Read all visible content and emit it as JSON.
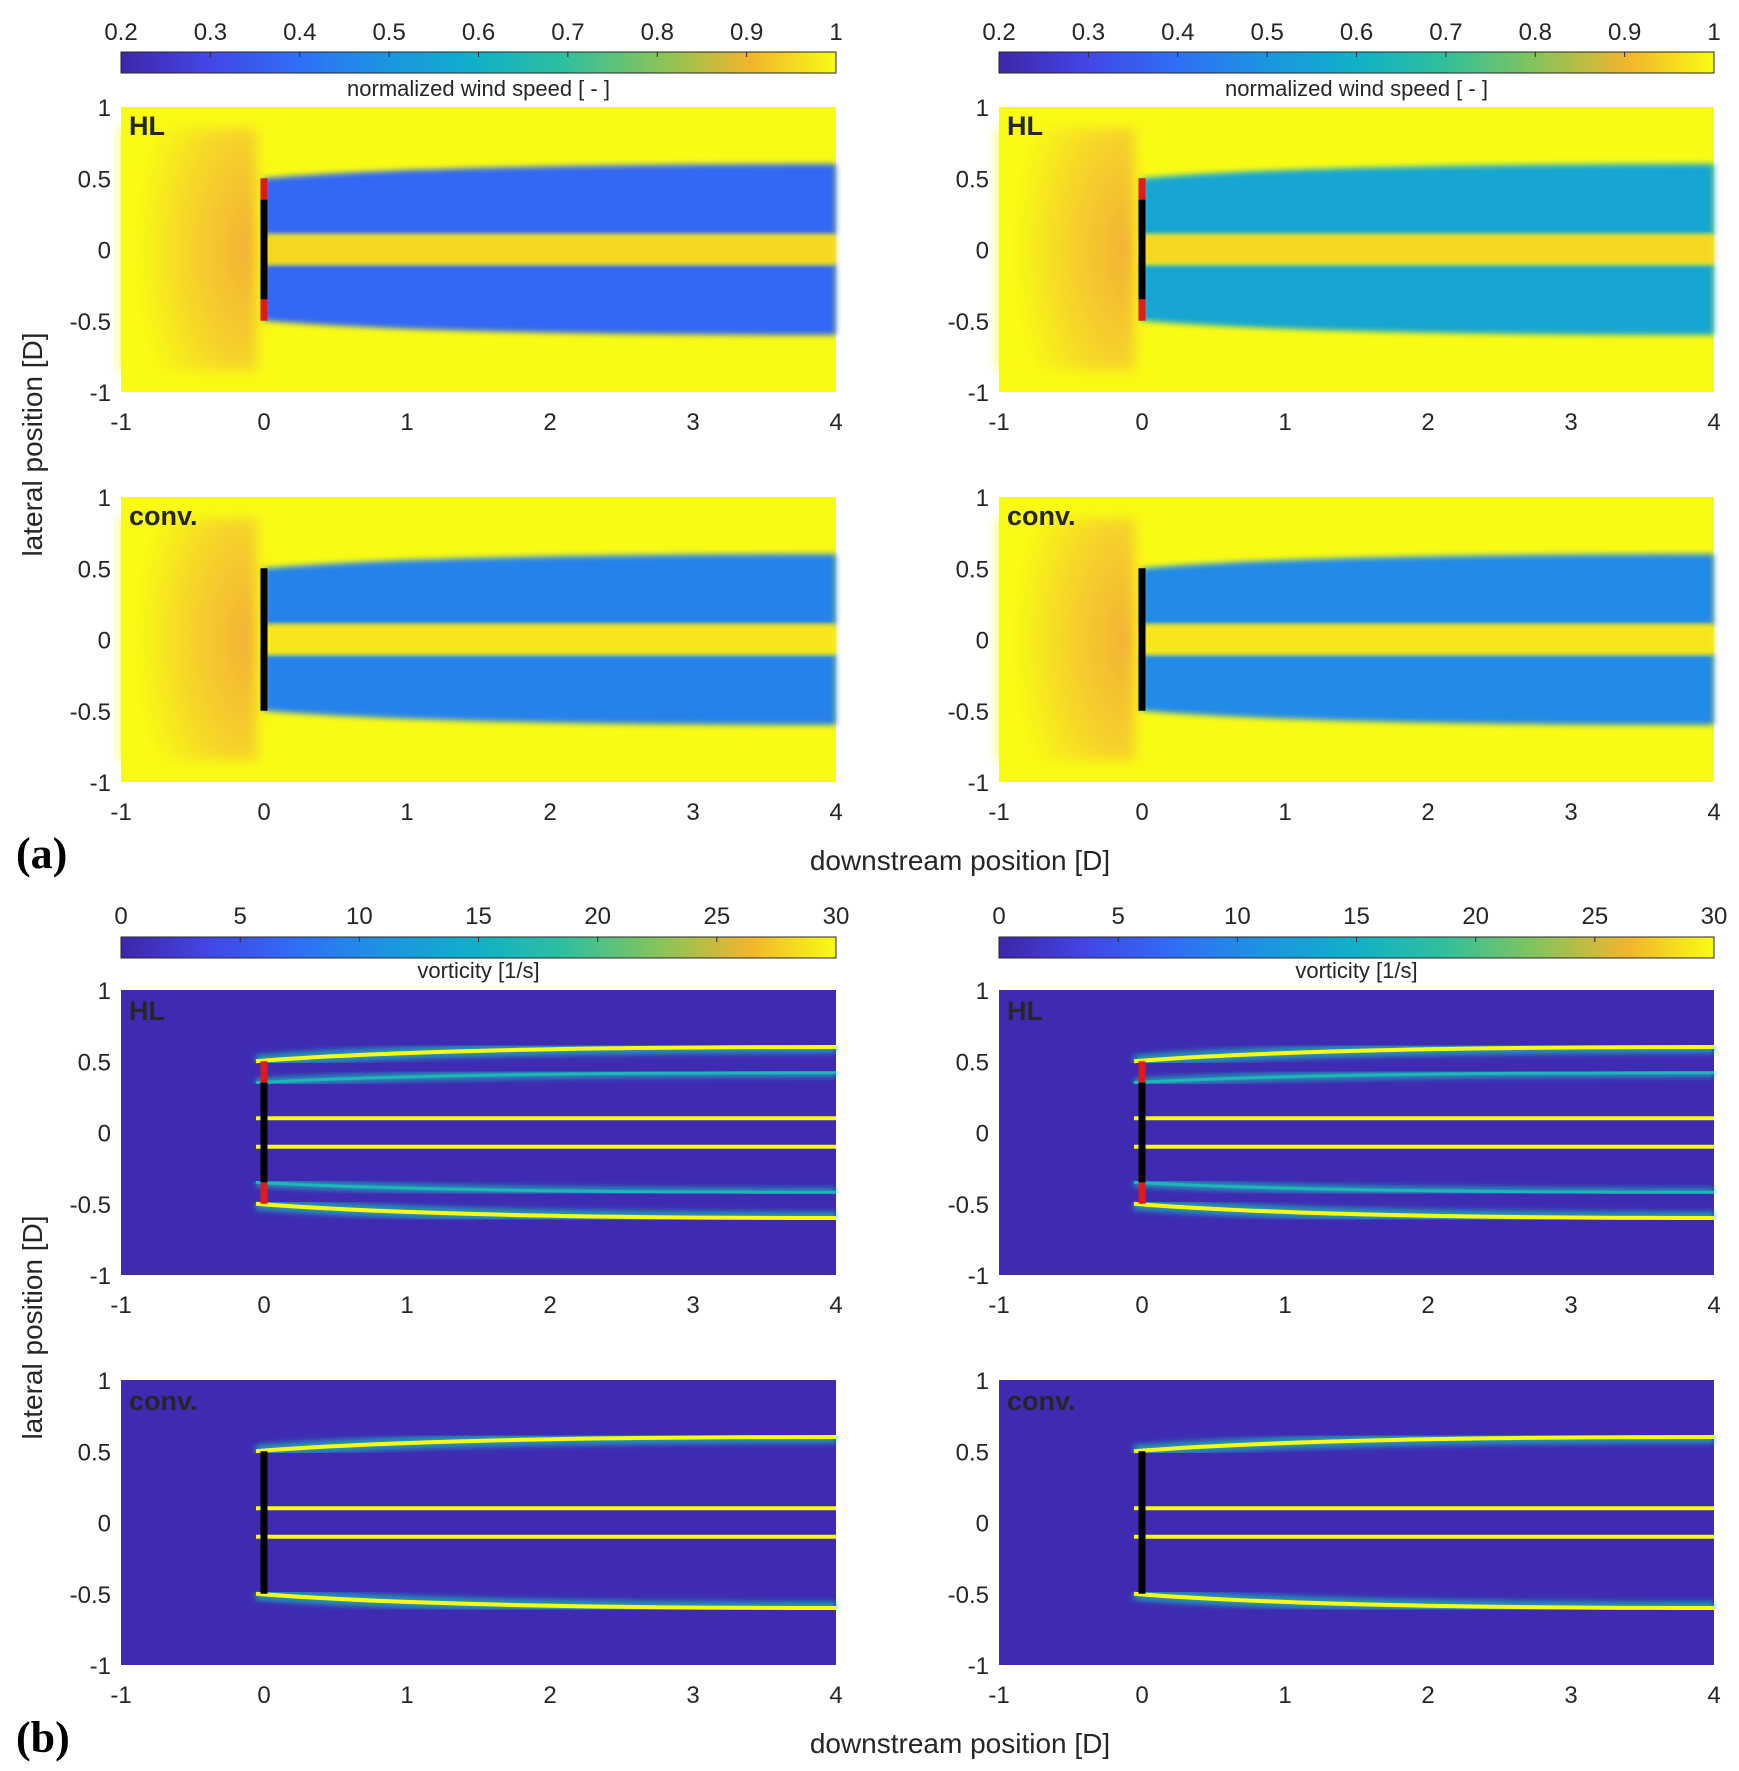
{
  "panel_labels": [
    "(a)",
    "(b)"
  ],
  "chart_data": [
    {
      "type": "heatmap",
      "section": "a",
      "xlabel": "downstream position [D]",
      "ylabel": "lateral position [D]",
      "xlim": [
        -1,
        4
      ],
      "ylim": [
        -1,
        1
      ],
      "xticks": [
        "-1",
        "0",
        "1",
        "2",
        "3",
        "4"
      ],
      "yticks": [
        "1",
        "0.5",
        "0",
        "-0.5",
        "-1"
      ],
      "colorbar": {
        "label": "normalized wind speed [ - ]",
        "range": [
          0.2,
          1
        ],
        "ticks": [
          "0.2",
          "0.3",
          "0.4",
          "0.5",
          "0.6",
          "0.7",
          "0.8",
          "0.9",
          "1"
        ]
      },
      "grid": false,
      "panels": [
        {
          "id": "a-top-left",
          "tag": "HL",
          "rotor": "HL",
          "wake_value": 0.38,
          "gap_value": 0.95
        },
        {
          "id": "a-top-right",
          "tag": "HL",
          "rotor": "HL",
          "wake_value": 0.56,
          "gap_value": 0.95
        },
        {
          "id": "a-bottom-left",
          "tag": "conv.",
          "rotor": "conv",
          "wake_value": 0.45,
          "gap_value": 0.97
        },
        {
          "id": "a-bottom-right",
          "tag": "conv.",
          "rotor": "conv",
          "wake_value": 0.47,
          "gap_value": 0.97
        }
      ]
    },
    {
      "type": "heatmap",
      "section": "b",
      "xlabel": "downstream position [D]",
      "ylabel": "lateral position [D]",
      "xlim": [
        -1,
        4
      ],
      "ylim": [
        -1,
        1
      ],
      "xticks": [
        "-1",
        "0",
        "1",
        "2",
        "3",
        "4"
      ],
      "yticks": [
        "1",
        "0.5",
        "0",
        "-0.5",
        "-1"
      ],
      "colorbar": {
        "label": "vorticity [1/s]",
        "range": [
          0,
          30
        ],
        "ticks": [
          "0",
          "5",
          "10",
          "15",
          "20",
          "25",
          "30"
        ]
      },
      "grid": false,
      "panels": [
        {
          "id": "b-top-left",
          "tag": "HL",
          "rotor": "HL"
        },
        {
          "id": "b-top-right",
          "tag": "HL",
          "rotor": "HL"
        },
        {
          "id": "b-bottom-left",
          "tag": "conv.",
          "rotor": "conv"
        },
        {
          "id": "b-bottom-right",
          "tag": "conv.",
          "rotor": "conv"
        }
      ]
    }
  ]
}
